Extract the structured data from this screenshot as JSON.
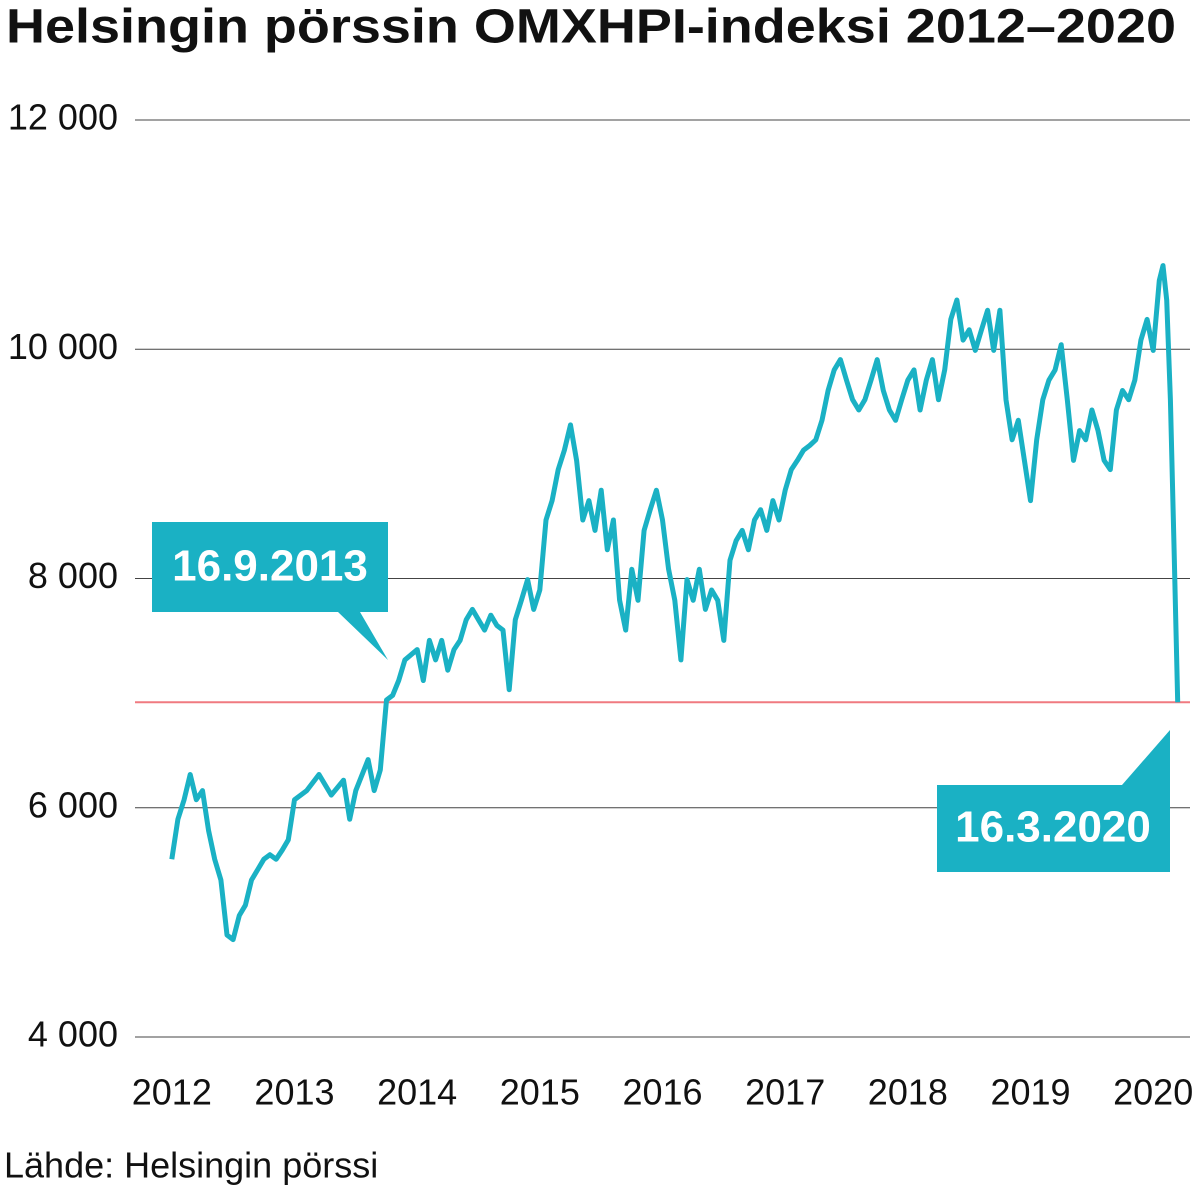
{
  "chart_data": {
    "type": "line",
    "title": "Helsingin pörssin OMXHPI-indeksi 2012–2020",
    "source": "Lähde: Helsingin pörssi",
    "x": [
      2012.0,
      2012.05,
      2012.1,
      2012.15,
      2012.2,
      2012.25,
      2012.3,
      2012.35,
      2012.4,
      2012.45,
      2012.5,
      2012.55,
      2012.6,
      2012.65,
      2012.7,
      2012.75,
      2012.8,
      2012.85,
      2012.9,
      2012.95,
      2013.0,
      2013.1,
      2013.2,
      2013.3,
      2013.4,
      2013.45,
      2013.5,
      2013.6,
      2013.65,
      2013.7,
      2013.75,
      2013.8,
      2013.85,
      2013.9,
      2014.0,
      2014.05,
      2014.1,
      2014.15,
      2014.2,
      2014.25,
      2014.3,
      2014.35,
      2014.4,
      2014.45,
      2014.5,
      2014.55,
      2014.6,
      2014.65,
      2014.7,
      2014.75,
      2014.8,
      2014.85,
      2014.9,
      2014.95,
      2015.0,
      2015.05,
      2015.1,
      2015.15,
      2015.2,
      2015.25,
      2015.3,
      2015.35,
      2015.4,
      2015.45,
      2015.5,
      2015.55,
      2015.6,
      2015.65,
      2015.7,
      2015.75,
      2015.8,
      2015.85,
      2015.9,
      2015.95,
      2016.0,
      2016.05,
      2016.1,
      2016.15,
      2016.2,
      2016.25,
      2016.3,
      2016.35,
      2016.4,
      2016.45,
      2016.5,
      2016.55,
      2016.6,
      2016.65,
      2016.7,
      2016.75,
      2016.8,
      2016.85,
      2016.9,
      2016.95,
      2017.0,
      2017.05,
      2017.1,
      2017.15,
      2017.2,
      2017.25,
      2017.3,
      2017.35,
      2017.4,
      2017.45,
      2017.5,
      2017.55,
      2017.6,
      2017.65,
      2017.7,
      2017.75,
      2017.8,
      2017.85,
      2017.9,
      2017.95,
      2018.0,
      2018.05,
      2018.1,
      2018.15,
      2018.2,
      2018.25,
      2018.3,
      2018.35,
      2018.4,
      2018.45,
      2018.5,
      2018.55,
      2018.6,
      2018.65,
      2018.7,
      2018.75,
      2018.8,
      2018.85,
      2018.9,
      2018.95,
      2019.0,
      2019.05,
      2019.1,
      2019.15,
      2019.2,
      2019.25,
      2019.3,
      2019.35,
      2019.4,
      2019.45,
      2019.5,
      2019.55,
      2019.6,
      2019.65,
      2019.7,
      2019.75,
      2019.8,
      2019.85,
      2019.9,
      2019.95,
      2020.0,
      2020.05,
      2020.08,
      2020.11,
      2020.14,
      2020.17,
      2020.2
    ],
    "series": [
      {
        "color": "#1ab1c4",
        "values": [
          5550,
          5900,
          6070,
          6290,
          6070,
          6150,
          5800,
          5550,
          5370,
          4890,
          4850,
          5060,
          5150,
          5370,
          5460,
          5550,
          5590,
          5550,
          5630,
          5720,
          6070,
          6150,
          6290,
          6110,
          6240,
          5900,
          6150,
          6420,
          6150,
          6330,
          6940,
          6980,
          7110,
          7290,
          7380,
          7110,
          7460,
          7290,
          7460,
          7200,
          7380,
          7460,
          7640,
          7730,
          7640,
          7550,
          7680,
          7590,
          7550,
          7030,
          7640,
          7810,
          7990,
          7730,
          7900,
          8510,
          8680,
          8950,
          9120,
          9340,
          9030,
          8510,
          8680,
          8420,
          8770,
          8250,
          8510,
          7810,
          7550,
          8080,
          7810,
          8420,
          8600,
          8770,
          8510,
          8080,
          7810,
          7290,
          7990,
          7810,
          8080,
          7730,
          7900,
          7810,
          7460,
          8160,
          8330,
          8420,
          8250,
          8510,
          8600,
          8420,
          8680,
          8510,
          8770,
          8950,
          9030,
          9120,
          9160,
          9210,
          9380,
          9640,
          9820,
          9910,
          9730,
          9560,
          9470,
          9560,
          9730,
          9910,
          9640,
          9470,
          9380,
          9560,
          9730,
          9820,
          9470,
          9730,
          9910,
          9560,
          9820,
          10260,
          10430,
          10080,
          10170,
          9990,
          10170,
          10340,
          9990,
          10340,
          9560,
          9210,
          9380,
          9030,
          8680,
          9210,
          9560,
          9730,
          9820,
          10040,
          9560,
          9030,
          9290,
          9210,
          9470,
          9290,
          9030,
          8950,
          9470,
          9640,
          9560,
          9730,
          10080,
          10260,
          9990,
          10600,
          10730,
          10430,
          9560,
          8250,
          6920
        ]
      }
    ],
    "reference_line": {
      "value": 6920,
      "color": "#f07a80"
    },
    "annotations": [
      {
        "text": "16.9.2013"
      },
      {
        "text": "16.3.2020"
      }
    ],
    "xlim": [
      2011.7,
      2020.3
    ],
    "xticks": [
      2012,
      2013,
      2014,
      2015,
      2016,
      2017,
      2018,
      2019,
      2020
    ],
    "ylim": [
      4000,
      12000
    ],
    "yticks": [
      {
        "value": 4000,
        "label": "4 000"
      },
      {
        "value": 6000,
        "label": "6 000"
      },
      {
        "value": 8000,
        "label": "8 000"
      },
      {
        "value": 10000,
        "label": "10 000"
      },
      {
        "value": 12000,
        "label": "12 000"
      }
    ],
    "grid": true
  }
}
